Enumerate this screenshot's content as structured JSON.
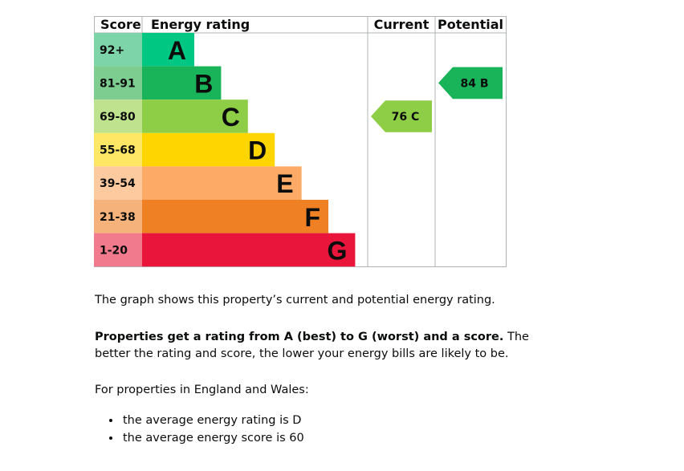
{
  "chart_data": {
    "type": "bar",
    "title": "",
    "headers": {
      "score": "Score",
      "rating": "Energy rating",
      "current": "Current",
      "potential": "Potential"
    },
    "bands": [
      {
        "letter": "A",
        "range": "92+",
        "color": "#00c781",
        "score_color": "#7ed4a9"
      },
      {
        "letter": "B",
        "range": "81-91",
        "color": "#19b459",
        "score_color": "#7dcc90"
      },
      {
        "letter": "C",
        "range": "69-80",
        "color": "#8dce46",
        "score_color": "#bfe28f"
      },
      {
        "letter": "D",
        "range": "55-68",
        "color": "#ffd500",
        "score_color": "#ffe766"
      },
      {
        "letter": "E",
        "range": "39-54",
        "color": "#fcaa65",
        "score_color": "#fdcaa0"
      },
      {
        "letter": "F",
        "range": "21-38",
        "color": "#ef8023",
        "score_color": "#f5b27a"
      },
      {
        "letter": "G",
        "range": "1-20",
        "color": "#e9153b",
        "score_color": "#f27a8d"
      }
    ],
    "current": {
      "score": 76,
      "band": "C",
      "label": "76  C",
      "color": "#8dce46"
    },
    "potential": {
      "score": 84,
      "band": "B",
      "label": "84  B",
      "color": "#19b459"
    },
    "border_color": "#b1b4b6"
  },
  "text": {
    "p1": "The graph shows this property’s current and potential energy rating.",
    "p2_bold": "Properties get a rating from A (best) to G (worst) and a score.",
    "p2_rest": " The better the rating and score, the lower your energy bills are likely to be.",
    "p3": "For properties in England and Wales:",
    "bullets": [
      "the average energy rating is D",
      "the average energy score is 60"
    ]
  }
}
